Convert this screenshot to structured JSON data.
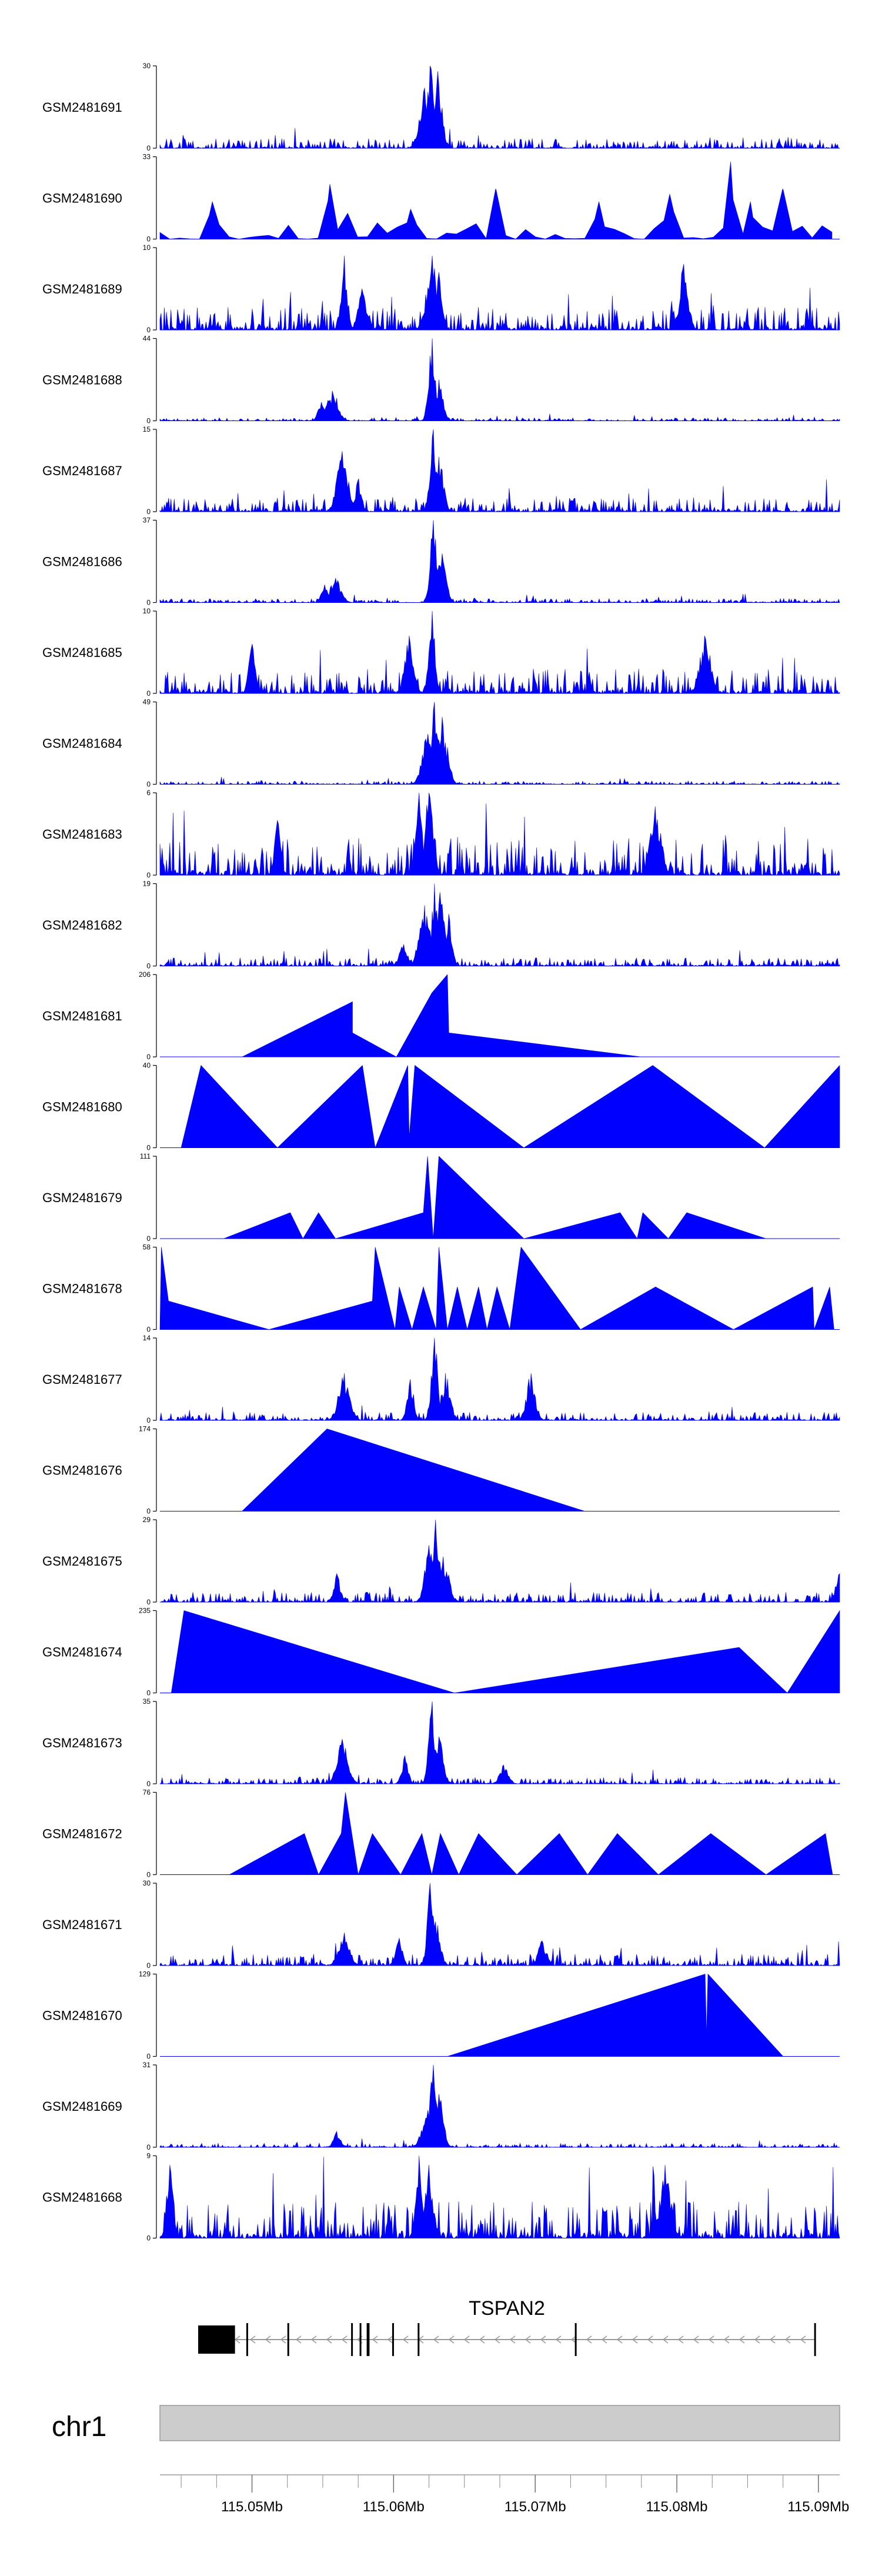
{
  "chart_data": {
    "type": "area",
    "description_axis": "genomic coverage tracks",
    "colors": {
      "signal": "#0000ff",
      "axis": "#000000",
      "ideogram_fill": "#cccccc",
      "ideogram_stroke": "#999999",
      "gene_fill": "#000000",
      "intron_line": "#999999"
    },
    "x_range": [
      115.0435,
      115.0915
    ],
    "tracks": [
      {
        "name": "GSM2481691",
        "ymax": 30,
        "ymin": 0,
        "style": "dense",
        "peaks": [
          [
            115.0626,
            30
          ],
          [
            115.0631,
            28
          ],
          [
            115.0622,
            22
          ]
        ],
        "noise": 0.12
      },
      {
        "name": "GSM2481690",
        "ymax": 33,
        "ymin": 0,
        "style": "sparse",
        "peaks": [
          [
            115.0472,
            15
          ],
          [
            115.0555,
            22
          ],
          [
            115.0612,
            12
          ],
          [
            115.0672,
            20
          ],
          [
            115.0745,
            15
          ],
          [
            115.0795,
            18
          ],
          [
            115.0838,
            31
          ],
          [
            115.0852,
            15
          ],
          [
            115.0875,
            20
          ]
        ],
        "noise": 0.2
      },
      {
        "name": "GSM2481689",
        "ymax": 10,
        "ymin": 0,
        "style": "dense",
        "peaks": [
          [
            115.0565,
            9
          ],
          [
            115.0578,
            5
          ],
          [
            115.0627,
            9
          ],
          [
            115.0632,
            7
          ],
          [
            115.0805,
            8
          ]
        ],
        "noise": 0.28
      },
      {
        "name": "GSM2481688",
        "ymax": 44,
        "ymin": 0,
        "style": "dense",
        "peaks": [
          [
            115.0627,
            44
          ],
          [
            115.0632,
            22
          ],
          [
            115.0557,
            16
          ],
          [
            115.0549,
            10
          ]
        ],
        "noise": 0.04
      },
      {
        "name": "GSM2481687",
        "ymax": 15,
        "ymin": 0,
        "style": "dense",
        "peaks": [
          [
            115.0628,
            15
          ],
          [
            115.0632,
            10
          ],
          [
            115.0564,
            11
          ],
          [
            115.0575,
            6
          ]
        ],
        "noise": 0.18
      },
      {
        "name": "GSM2481686",
        "ymax": 37,
        "ymin": 0,
        "style": "dense",
        "peaks": [
          [
            115.0628,
            37
          ],
          [
            115.0634,
            22
          ],
          [
            115.0559,
            11
          ],
          [
            115.0551,
            8
          ]
        ],
        "noise": 0.05
      },
      {
        "name": "GSM2481685",
        "ymax": 10,
        "ymin": 0,
        "style": "dense",
        "peaks": [
          [
            115.0627,
            10
          ],
          [
            115.0611,
            7
          ],
          [
            115.082,
            7
          ],
          [
            115.05,
            6
          ]
        ],
        "noise": 0.3
      },
      {
        "name": "GSM2481684",
        "ymax": 49,
        "ymin": 0,
        "style": "dense",
        "peaks": [
          [
            115.0629,
            49
          ],
          [
            115.0634,
            40
          ],
          [
            115.0624,
            30
          ],
          [
            115.0638,
            22
          ]
        ],
        "noise": 0.04
      },
      {
        "name": "GSM2481683",
        "ymax": 6,
        "ymin": 0,
        "style": "dense",
        "peaks": [
          [
            115.0618,
            6
          ],
          [
            115.0625,
            6
          ],
          [
            115.0785,
            5
          ],
          [
            115.0518,
            4
          ]
        ],
        "noise": 0.45
      },
      {
        "name": "GSM2481682",
        "ymax": 19,
        "ymin": 0,
        "style": "dense",
        "peaks": [
          [
            115.0629,
            19
          ],
          [
            115.0633,
            17
          ],
          [
            115.0622,
            14
          ],
          [
            115.0639,
            12
          ],
          [
            115.0607,
            5
          ]
        ],
        "noise": 0.1
      },
      {
        "name": "GSM2481681",
        "ymax": 206,
        "ymin": 0,
        "style": "poly",
        "poly": [
          [
            115.0493,
            0
          ],
          [
            115.0571,
            138
          ],
          [
            115.0571,
            60
          ],
          [
            115.0602,
            0
          ],
          [
            115.0627,
            160
          ],
          [
            115.0638,
            206
          ],
          [
            115.0639,
            60
          ],
          [
            115.0775,
            0
          ]
        ]
      },
      {
        "name": "GSM2481680",
        "ymax": 40,
        "ymin": 0,
        "style": "poly",
        "poly": [
          [
            115.045,
            0
          ],
          [
            115.0464,
            40
          ],
          [
            115.0518,
            0
          ],
          [
            115.0578,
            40
          ],
          [
            115.0587,
            0
          ],
          [
            115.061,
            40
          ],
          [
            115.0611,
            5
          ],
          [
            115.0615,
            40
          ],
          [
            115.0692,
            0
          ],
          [
            115.0783,
            40
          ],
          [
            115.0862,
            0
          ],
          [
            115.0915,
            40
          ],
          [
            115.0915,
            0
          ]
        ]
      },
      {
        "name": "GSM2481679",
        "ymax": 111,
        "ymin": 0,
        "style": "poly",
        "poly": [
          [
            115.048,
            0
          ],
          [
            115.0527,
            35
          ],
          [
            115.0536,
            0
          ],
          [
            115.0547,
            35
          ],
          [
            115.0559,
            0
          ],
          [
            115.0621,
            35
          ],
          [
            115.0624,
            111
          ],
          [
            115.0628,
            0
          ],
          [
            115.0632,
            111
          ],
          [
            115.0692,
            0
          ],
          [
            115.076,
            35
          ],
          [
            115.0772,
            0
          ],
          [
            115.0776,
            35
          ],
          [
            115.0794,
            0
          ],
          [
            115.0807,
            35
          ],
          [
            115.0863,
            0
          ]
        ]
      },
      {
        "name": "GSM2481678",
        "ymax": 58,
        "ymin": 0,
        "style": "poly",
        "poly": [
          [
            115.0435,
            0
          ],
          [
            115.0436,
            58
          ],
          [
            115.0441,
            20
          ],
          [
            115.0512,
            0
          ],
          [
            115.0585,
            20
          ],
          [
            115.0587,
            58
          ],
          [
            115.0601,
            0
          ],
          [
            115.0604,
            30
          ],
          [
            115.0613,
            0
          ],
          [
            115.0621,
            30
          ],
          [
            115.063,
            0
          ],
          [
            115.0632,
            58
          ],
          [
            115.0638,
            0
          ],
          [
            115.0645,
            30
          ],
          [
            115.0652,
            0
          ],
          [
            115.066,
            30
          ],
          [
            115.0666,
            0
          ],
          [
            115.0673,
            30
          ],
          [
            115.0682,
            0
          ],
          [
            115.069,
            58
          ],
          [
            115.0732,
            0
          ],
          [
            115.0785,
            30
          ],
          [
            115.084,
            0
          ],
          [
            115.0896,
            30
          ],
          [
            115.0897,
            0
          ],
          [
            115.0908,
            30
          ],
          [
            115.0911,
            0
          ]
        ]
      },
      {
        "name": "GSM2481677",
        "ymax": 14,
        "ymin": 0,
        "style": "dense",
        "peaks": [
          [
            115.0629,
            14
          ],
          [
            115.0637,
            8
          ],
          [
            115.0565,
            8
          ],
          [
            115.0612,
            7
          ],
          [
            115.0697,
            8
          ]
        ],
        "noise": 0.1
      },
      {
        "name": "GSM2481676",
        "ymax": 174,
        "ymin": 0,
        "style": "poly",
        "poly": [
          [
            115.0493,
            0
          ],
          [
            115.0553,
            174
          ],
          [
            115.0735,
            0
          ]
        ]
      },
      {
        "name": "GSM2481675",
        "ymax": 29,
        "ymin": 0,
        "style": "dense",
        "peaks": [
          [
            115.063,
            29
          ],
          [
            115.0625,
            20
          ],
          [
            115.0635,
            16
          ],
          [
            115.056,
            10
          ],
          [
            115.0915,
            10
          ]
        ],
        "noise": 0.12
      },
      {
        "name": "GSM2481674",
        "ymax": 235,
        "ymin": 0,
        "style": "poly",
        "poly": [
          [
            115.0443,
            0
          ],
          [
            115.0452,
            235
          ],
          [
            115.0643,
            0
          ],
          [
            115.0844,
            130
          ],
          [
            115.0878,
            0
          ],
          [
            115.0915,
            235
          ],
          [
            115.0915,
            0
          ]
        ]
      },
      {
        "name": "GSM2481673",
        "ymax": 35,
        "ymin": 0,
        "style": "dense",
        "peaks": [
          [
            115.0627,
            35
          ],
          [
            115.0632,
            20
          ],
          [
            115.0564,
            19
          ],
          [
            115.0608,
            12
          ],
          [
            115.0678,
            8
          ]
        ],
        "noise": 0.08
      },
      {
        "name": "GSM2481672",
        "ymax": 76,
        "ymin": 0,
        "style": "poly",
        "poly": [
          [
            115.0484,
            0
          ],
          [
            115.0537,
            38
          ],
          [
            115.0547,
            0
          ],
          [
            115.0563,
            38
          ],
          [
            115.0566,
            76
          ],
          [
            115.0575,
            0
          ],
          [
            115.0585,
            38
          ],
          [
            115.0605,
            0
          ],
          [
            115.062,
            38
          ],
          [
            115.0627,
            0
          ],
          [
            115.0633,
            38
          ],
          [
            115.0646,
            0
          ],
          [
            115.066,
            38
          ],
          [
            115.0687,
            0
          ],
          [
            115.0717,
            38
          ],
          [
            115.0737,
            0
          ],
          [
            115.0758,
            38
          ],
          [
            115.0787,
            0
          ],
          [
            115.0824,
            38
          ],
          [
            115.0863,
            0
          ],
          [
            115.0905,
            38
          ],
          [
            115.091,
            0
          ]
        ]
      },
      {
        "name": "GSM2481671",
        "ymax": 30,
        "ymin": 0,
        "style": "dense",
        "peaks": [
          [
            115.0626,
            30
          ],
          [
            115.063,
            16
          ],
          [
            115.0565,
            12
          ],
          [
            115.0604,
            10
          ],
          [
            115.0705,
            9
          ]
        ],
        "noise": 0.14
      },
      {
        "name": "GSM2481670",
        "ymax": 129,
        "ymin": 0,
        "style": "poly",
        "poly": [
          [
            115.0638,
            0
          ],
          [
            115.082,
            129
          ],
          [
            115.0821,
            30
          ],
          [
            115.0822,
            129
          ],
          [
            115.0875,
            0
          ]
        ]
      },
      {
        "name": "GSM2481669",
        "ymax": 31,
        "ymin": 0,
        "style": "dense",
        "peaks": [
          [
            115.0628,
            31
          ],
          [
            115.0632,
            20
          ],
          [
            115.0624,
            14
          ],
          [
            115.056,
            6
          ]
        ],
        "noise": 0.05
      },
      {
        "name": "GSM2481668",
        "ymax": 9,
        "ymin": 0,
        "style": "dense",
        "peaks": [
          [
            115.0618,
            9
          ],
          [
            115.0625,
            8
          ],
          [
            115.0792,
            8
          ],
          [
            115.0442,
            8
          ]
        ],
        "noise": 0.45
      }
    ],
    "gene": {
      "name": "TSPAN2",
      "strand": "-",
      "start": 115.0462,
      "end": 115.0898,
      "exons": [
        [
          115.0462,
          115.0488
        ],
        [
          115.0496,
          115.0497
        ],
        [
          115.0525,
          115.0526
        ],
        [
          115.057,
          115.0571
        ],
        [
          115.0576,
          115.0577
        ],
        [
          115.0581,
          115.0583
        ],
        [
          115.0599,
          115.06
        ],
        [
          115.0617,
          115.0618
        ],
        [
          115.0728,
          115.0729
        ],
        [
          115.0897,
          115.0898
        ]
      ],
      "thick_end": 115.0488
    },
    "chromosome": "chr1",
    "x_ticks": [
      {
        "value": 115.05,
        "label": "115.05Mb"
      },
      {
        "value": 115.06,
        "label": "115.06Mb"
      },
      {
        "value": 115.07,
        "label": "115.07Mb"
      },
      {
        "value": 115.08,
        "label": "115.08Mb"
      },
      {
        "value": 115.09,
        "label": "115.09Mb"
      }
    ],
    "minor_tick_step": 0.0025
  }
}
